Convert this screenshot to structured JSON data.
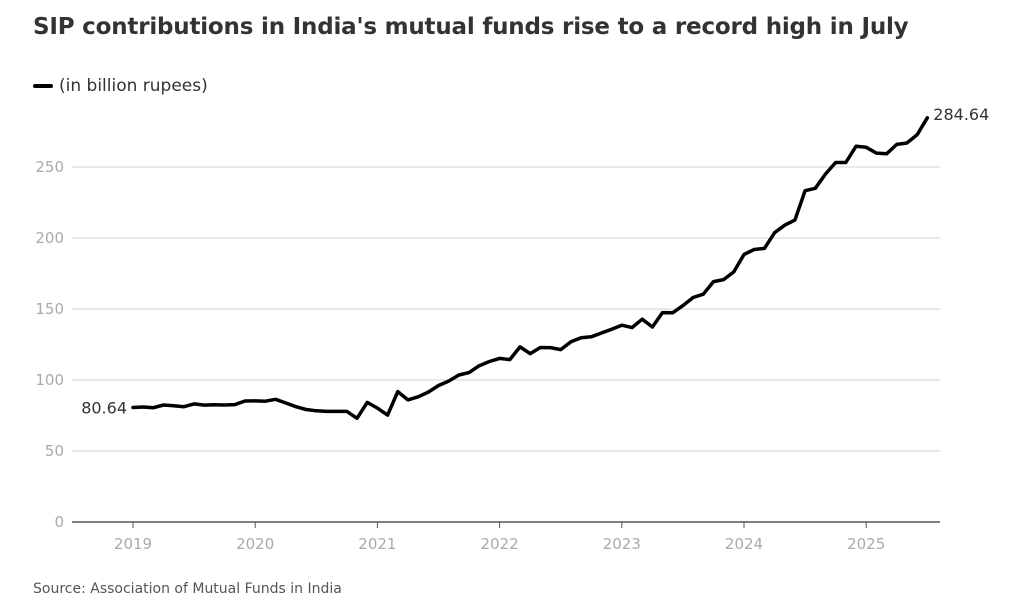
{
  "title": "SIP contributions in India's mutual funds rise to a record high in July",
  "legend": {
    "label": "(in billion rupees)",
    "color": "#000000"
  },
  "source": "Source: Association of Mutual Funds in India",
  "chart_data": {
    "type": "line",
    "title": "SIP contributions in India's mutual funds rise to a record high in July",
    "ylabel": "",
    "xlabel": "",
    "ylim": [
      0,
      300
    ],
    "yticks": [
      0,
      50,
      100,
      150,
      200,
      250
    ],
    "xticks": [
      "2019",
      "2020",
      "2021",
      "2022",
      "2023",
      "2024",
      "2025"
    ],
    "grid": true,
    "legend_position": "top-left",
    "start_label": "80.64",
    "end_label": "284.64",
    "series": [
      {
        "name": "(in billion rupees)",
        "color": "#000000",
        "x": [
          "2019-01",
          "2019-02",
          "2019-03",
          "2019-04",
          "2019-05",
          "2019-06",
          "2019-07",
          "2019-08",
          "2019-09",
          "2019-10",
          "2019-11",
          "2019-12",
          "2020-01",
          "2020-02",
          "2020-03",
          "2020-04",
          "2020-05",
          "2020-06",
          "2020-07",
          "2020-08",
          "2020-09",
          "2020-10",
          "2020-11",
          "2020-12",
          "2021-01",
          "2021-02",
          "2021-03",
          "2021-04",
          "2021-05",
          "2021-06",
          "2021-07",
          "2021-08",
          "2021-09",
          "2021-10",
          "2021-11",
          "2021-12",
          "2022-01",
          "2022-02",
          "2022-03",
          "2022-04",
          "2022-05",
          "2022-06",
          "2022-07",
          "2022-08",
          "2022-09",
          "2022-10",
          "2022-11",
          "2022-12",
          "2023-01",
          "2023-02",
          "2023-03",
          "2023-04",
          "2023-05",
          "2023-06",
          "2023-07",
          "2023-08",
          "2023-09",
          "2023-10",
          "2023-11",
          "2023-12",
          "2024-01",
          "2024-02",
          "2024-03",
          "2024-04",
          "2024-05",
          "2024-06",
          "2024-07",
          "2024-08",
          "2024-09",
          "2024-10",
          "2024-11",
          "2024-12",
          "2025-01",
          "2025-02",
          "2025-03",
          "2025-04",
          "2025-05",
          "2025-06",
          "2025-07"
        ],
        "y": [
          80.64,
          81.0,
          80.5,
          82.4,
          81.8,
          81.2,
          83.2,
          82.3,
          82.6,
          82.4,
          82.7,
          85.2,
          85.3,
          85.1,
          86.4,
          83.8,
          81.2,
          79.2,
          78.3,
          77.9,
          77.9,
          77.9,
          73.0,
          84.2,
          80.2,
          75.3,
          91.8,
          86.0,
          88.2,
          91.5,
          96.1,
          99.2,
          103.5,
          105.2,
          110.1,
          113.0,
          115.2,
          114.4,
          123.3,
          118.6,
          122.9,
          122.8,
          121.4,
          126.9,
          129.8,
          130.4,
          133.1,
          135.7,
          138.6,
          136.9,
          142.8,
          137.3,
          147.5,
          147.3,
          152.4,
          158.1,
          160.4,
          169.3,
          170.7,
          176.1,
          188.4,
          191.9,
          192.7,
          203.7,
          209.0,
          212.6,
          233.3,
          235.0,
          245.1,
          253.2,
          253.2,
          264.6,
          263.9,
          259.8,
          259.3,
          265.9,
          266.9,
          272.7,
          284.64
        ]
      }
    ]
  }
}
